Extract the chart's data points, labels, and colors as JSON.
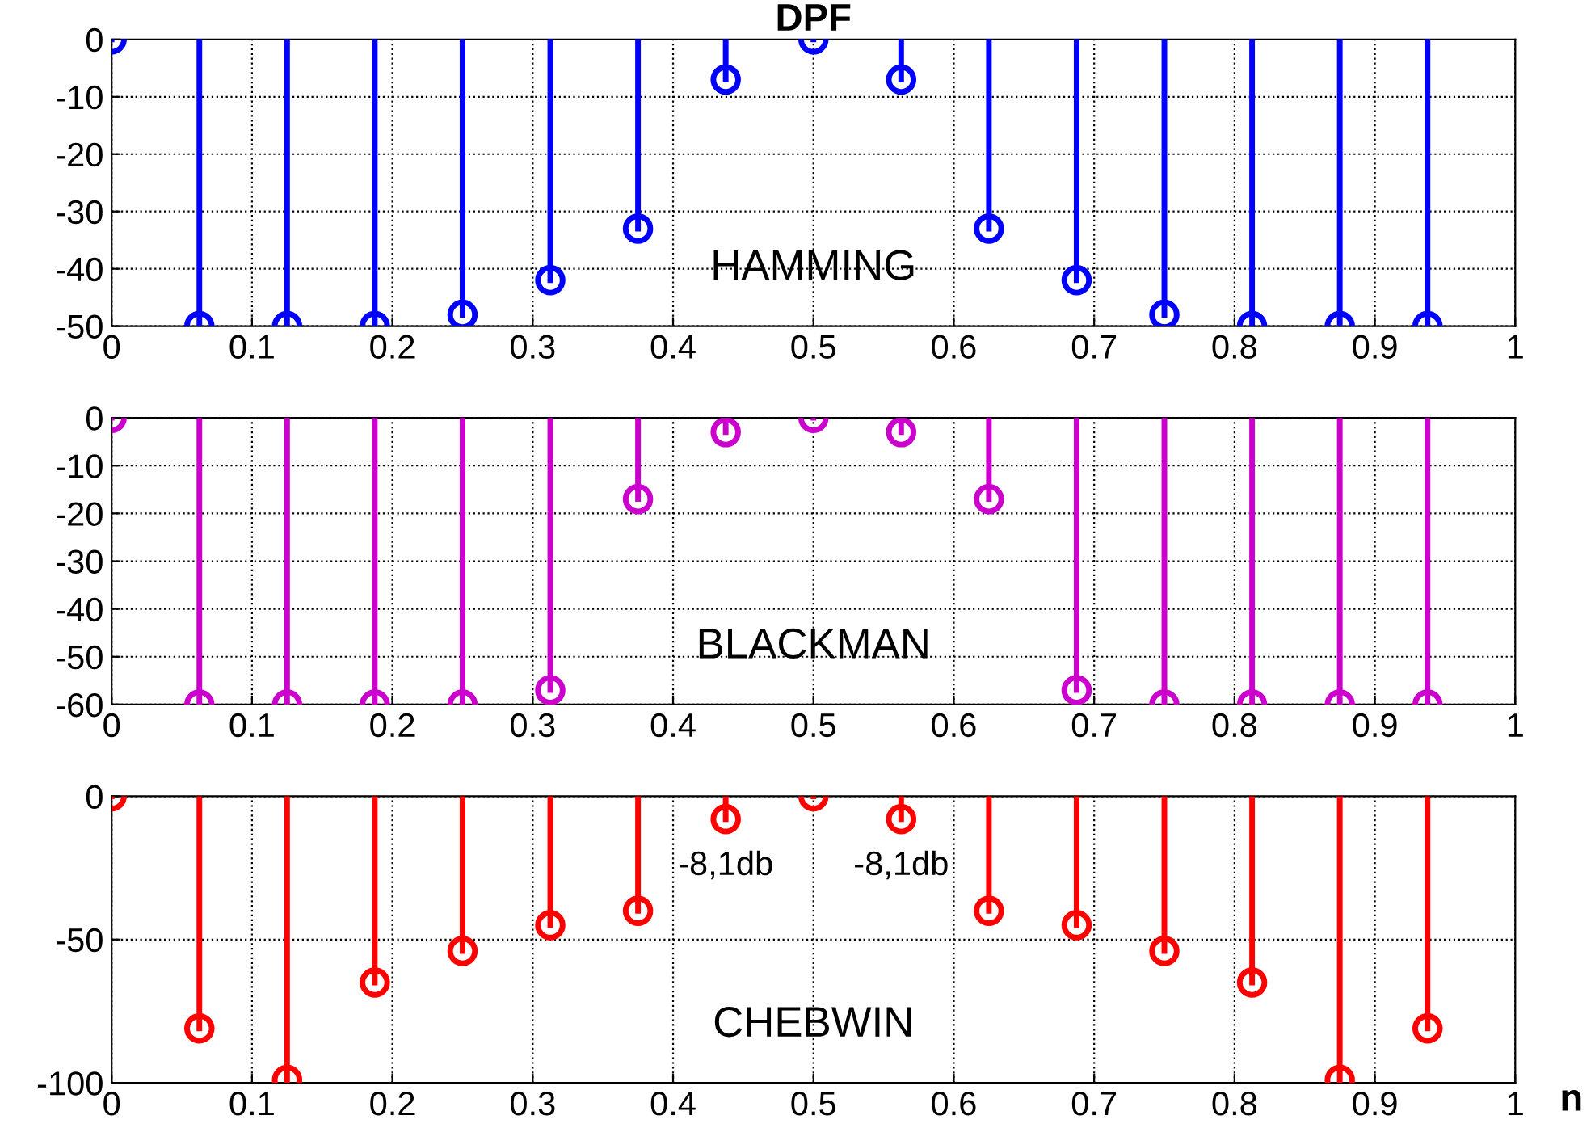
{
  "chart_data": [
    {
      "type": "lollipop",
      "title": "DPF",
      "x": [
        0,
        0.0625,
        0.125,
        0.1875,
        0.25,
        0.3125,
        0.375,
        0.4375,
        0.5,
        0.5625,
        0.625,
        0.6875,
        0.75,
        0.8125,
        0.875,
        0.9375
      ],
      "series": [
        {
          "color": "#0000ff",
          "values": [
            0,
            -50,
            -50,
            -50,
            -48,
            -42,
            -33,
            -7,
            0,
            -7,
            -33,
            -42,
            -48,
            -50,
            -50,
            -50
          ]
        }
      ],
      "annotations": [
        "HAMMING"
      ],
      "xlim": [
        0,
        1
      ],
      "xticks": [
        0,
        0.1,
        0.2,
        0.3,
        0.4,
        0.5,
        0.6,
        0.7,
        0.8,
        0.9,
        1
      ],
      "ylim": [
        -50,
        0
      ],
      "yticks": [
        0,
        -10,
        -20,
        -30,
        -40,
        -50
      ],
      "grid": true,
      "marker": "circle",
      "line_style": "solid"
    },
    {
      "type": "lollipop",
      "x": [
        0,
        0.0625,
        0.125,
        0.1875,
        0.25,
        0.3125,
        0.375,
        0.4375,
        0.5,
        0.5625,
        0.625,
        0.6875,
        0.75,
        0.8125,
        0.875,
        0.9375
      ],
      "series": [
        {
          "color": "#cc00cc",
          "values": [
            0,
            -60,
            -60,
            -60,
            -60,
            -57,
            -17,
            -3,
            0,
            -3,
            -17,
            -57,
            -60,
            -60,
            -60,
            -60
          ]
        }
      ],
      "annotations": [
        "BLACKMAN"
      ],
      "xlim": [
        0,
        1
      ],
      "xticks": [
        0,
        0.1,
        0.2,
        0.3,
        0.4,
        0.5,
        0.6,
        0.7,
        0.8,
        0.9,
        1
      ],
      "ylim": [
        -60,
        0
      ],
      "yticks": [
        0,
        -10,
        -20,
        -30,
        -40,
        -50,
        -60
      ],
      "grid": true,
      "marker": "circle",
      "line_style": "solid"
    },
    {
      "type": "lollipop",
      "xlabel": "n",
      "x": [
        0,
        0.0625,
        0.125,
        0.1875,
        0.25,
        0.3125,
        0.375,
        0.4375,
        0.5,
        0.5625,
        0.625,
        0.6875,
        0.75,
        0.8125,
        0.875,
        0.9375
      ],
      "series": [
        {
          "color": "#ff0000",
          "values": [
            0,
            -81,
            -99,
            -65,
            -54,
            -45,
            -40,
            -8,
            0,
            -8,
            -40,
            -45,
            -54,
            -65,
            -99,
            -81
          ]
        }
      ],
      "annotations": [
        "CHEBWIN",
        {
          "text": "-8,1db",
          "x": 0.4375,
          "y": -8
        },
        {
          "text": "-8,1db",
          "x": 0.5625,
          "y": -8
        }
      ],
      "xlim": [
        0,
        1
      ],
      "xticks": [
        0,
        0.1,
        0.2,
        0.3,
        0.4,
        0.5,
        0.6,
        0.7,
        0.8,
        0.9,
        1
      ],
      "ylim": [
        -100,
        0
      ],
      "yticks": [
        0,
        -50,
        -100
      ],
      "grid": true,
      "marker": "circle",
      "line_style": "solid"
    }
  ]
}
